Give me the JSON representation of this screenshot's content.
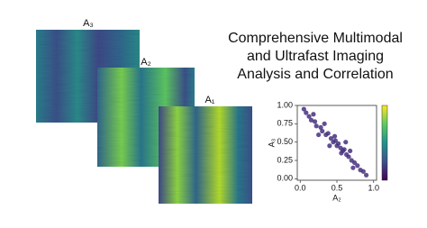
{
  "title_lines": [
    "Comprehensive Multimodal",
    "and Ultrafast Imaging",
    "Analysis and Correlation"
  ],
  "panels": [
    {
      "label": "A₃"
    },
    {
      "label": "A₂"
    },
    {
      "label": "A₁"
    }
  ],
  "chart_data": {
    "type": "scatter",
    "xlabel": "A₂",
    "ylabel": "A₃",
    "x": [
      0.05,
      0.08,
      0.12,
      0.15,
      0.2,
      0.22,
      0.28,
      0.3,
      0.35,
      0.38,
      0.42,
      0.45,
      0.48,
      0.5,
      0.52,
      0.55,
      0.58,
      0.6,
      0.63,
      0.66,
      0.7,
      0.74,
      0.78,
      0.82,
      0.86,
      0.9,
      0.18,
      0.33,
      0.47,
      0.62,
      0.4,
      0.56,
      0.72,
      0.25,
      0.68
    ],
    "y": [
      0.95,
      0.9,
      0.85,
      0.8,
      0.78,
      0.72,
      0.7,
      0.65,
      0.6,
      0.62,
      0.55,
      0.5,
      0.52,
      0.45,
      0.48,
      0.42,
      0.38,
      0.4,
      0.33,
      0.3,
      0.25,
      0.22,
      0.18,
      0.12,
      0.1,
      0.05,
      0.88,
      0.75,
      0.58,
      0.5,
      0.45,
      0.35,
      0.15,
      0.6,
      0.38
    ],
    "color": "#46307e",
    "xlim": [
      -0.04,
      1.04
    ],
    "ylim": [
      -0.02,
      1.0
    ],
    "xticks": [
      {
        "value": 0,
        "label": "0.0"
      },
      {
        "value": 0.5,
        "label": "0.5"
      },
      {
        "value": 1,
        "label": "1.0"
      }
    ],
    "yticks": [
      {
        "value": 0,
        "label": "0.00"
      },
      {
        "value": 0.25,
        "label": "0.25"
      },
      {
        "value": 0.5,
        "label": "0.50"
      },
      {
        "value": 0.75,
        "label": "0.75"
      },
      {
        "value": 1,
        "label": "1.00"
      }
    ]
  }
}
